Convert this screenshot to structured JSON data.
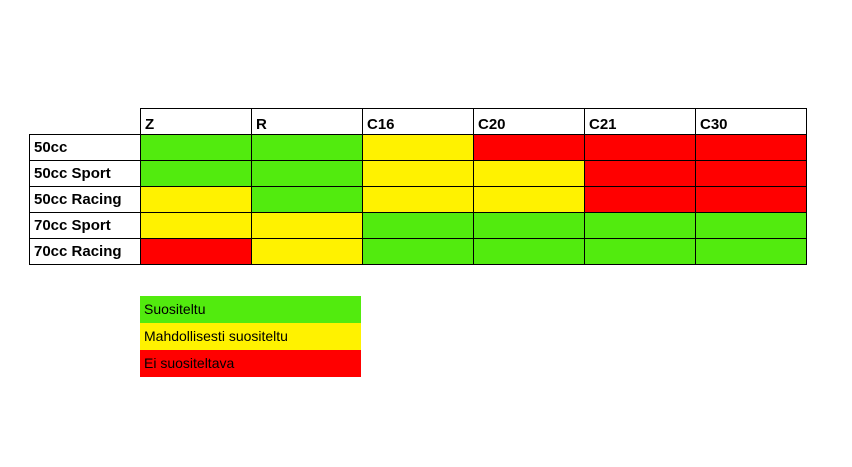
{
  "chart_data": {
    "type": "table",
    "columns": [
      "Z",
      "R",
      "C16",
      "C20",
      "C21",
      "C30"
    ],
    "rows": [
      {
        "label": "50cc",
        "values": [
          "Suositeltu",
          "Suositeltu",
          "Mahdollisesti suositeltu",
          "Ei suositeltava",
          "Ei suositeltava",
          "Ei suositeltava"
        ]
      },
      {
        "label": "50cc Sport",
        "values": [
          "Suositeltu",
          "Suositeltu",
          "Mahdollisesti suositeltu",
          "Mahdollisesti suositeltu",
          "Ei suositeltava",
          "Ei suositeltava"
        ]
      },
      {
        "label": "50cc Racing",
        "values": [
          "Mahdollisesti suositeltu",
          "Suositeltu",
          "Mahdollisesti suositeltu",
          "Mahdollisesti suositeltu",
          "Ei suositeltava",
          "Ei suositeltava"
        ]
      },
      {
        "label": "70cc Sport",
        "values": [
          "Mahdollisesti suositeltu",
          "Mahdollisesti suositeltu",
          "Suositeltu",
          "Suositeltu",
          "Suositeltu",
          "Suositeltu"
        ]
      },
      {
        "label": "70cc Racing",
        "values": [
          "Ei suositeltava",
          "Mahdollisesti suositeltu",
          "Suositeltu",
          "Suositeltu",
          "Suositeltu",
          "Suositeltu"
        ]
      }
    ],
    "legend": [
      {
        "label": "Suositeltu",
        "color": "#52eb0e"
      },
      {
        "label": "Mahdollisesti suositeltu",
        "color": "#fff200"
      },
      {
        "label": "Ei suositeltava",
        "color": "#ff0000"
      }
    ]
  }
}
